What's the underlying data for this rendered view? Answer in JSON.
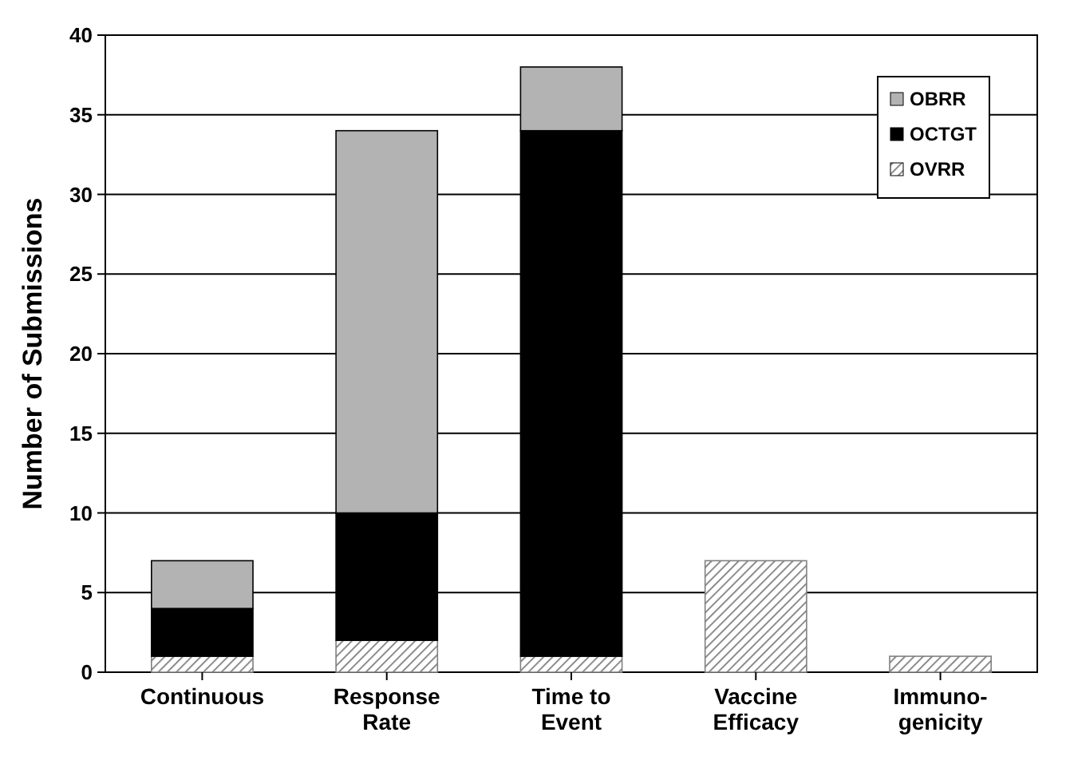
{
  "chart_data": {
    "type": "bar",
    "stacked": true,
    "ylabel": "Number of Submissions",
    "categories": [
      "Continuous",
      "Response\nRate",
      "Time to\nEvent",
      "Vaccine\nEfficacy",
      "Immuno-\ngenicity"
    ],
    "series": [
      {
        "name": "OVRR",
        "color": "#808080",
        "values": [
          1,
          2,
          1,
          7,
          1
        ]
      },
      {
        "name": "OCTGT",
        "color": "#000000",
        "values": [
          3,
          8,
          33,
          0,
          0
        ]
      },
      {
        "name": "OBRR",
        "color": "#b3b3b3",
        "values": [
          3,
          24,
          4,
          0,
          0
        ]
      }
    ],
    "ylim": [
      0,
      40
    ],
    "yticks": [
      0,
      5,
      10,
      15,
      20,
      25,
      30,
      35,
      40
    ],
    "grid": "y",
    "legend": "top right"
  }
}
